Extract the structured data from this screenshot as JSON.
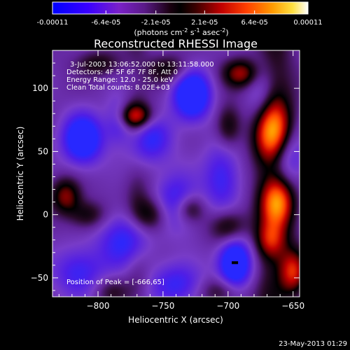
{
  "chart_data": {
    "type": "heatmap",
    "title": "Reconstructed RHESSI Image",
    "xlabel": "Heliocentric X (arcsec)",
    "ylabel": "Heliocentric Y (arcsec)",
    "xlim": [
      -835,
      -645
    ],
    "ylim": [
      -65,
      130
    ],
    "xticks": [
      -800,
      -750,
      -700,
      -650
    ],
    "yticks": [
      -50,
      0,
      50,
      100
    ],
    "colorbar": {
      "range": [
        -0.00011,
        0.00011
      ],
      "tick_labels": [
        "-0.00011",
        "-6.4e-05",
        "-2.1e-05",
        "2.1e-05",
        "6.4e-05",
        "0.00011"
      ],
      "label": "(photons cm",
      "label_sup1": "-2",
      "label_mid": " s",
      "label_sup2": "-1",
      "label_tail": " asec",
      "label_sup3": "-2",
      "label_end": ")"
    },
    "annotations": [
      "3-Jul-2003 13:06:52.000 to 13:11:58.000",
      "Detectors: 4F 5F 6F 7F 8F, Att 0",
      "Energy Range: 12.0 - 25.0 keV",
      "Clean     Total counts: 8.02E+03"
    ],
    "peak_label": "Position of Peak = [-666,65]",
    "timestamp": "23-May-2013 01:29",
    "sources": [
      {
        "x": -728,
        "y": 95,
        "sx": 10,
        "sy": 14,
        "a": -1.0
      },
      {
        "x": -812,
        "y": 60,
        "sx": 11,
        "sy": 14,
        "a": -0.9
      },
      {
        "x": -695,
        "y": -38,
        "sx": 9,
        "sy": 15,
        "a": -1.0
      },
      {
        "x": -760,
        "y": 60,
        "sx": 12,
        "sy": 14,
        "a": -0.55
      },
      {
        "x": -780,
        "y": -20,
        "sx": 14,
        "sy": 16,
        "a": -0.55
      },
      {
        "x": -740,
        "y": 10,
        "sx": 12,
        "sy": 16,
        "a": -0.55
      },
      {
        "x": -705,
        "y": 30,
        "sx": 10,
        "sy": 20,
        "a": -0.5
      },
      {
        "x": -815,
        "y": -45,
        "sx": 14,
        "sy": 14,
        "a": -0.5
      },
      {
        "x": -740,
        "y": -55,
        "sx": 15,
        "sy": 12,
        "a": -0.5
      },
      {
        "x": -655,
        "y": 45,
        "sx": 10,
        "sy": 16,
        "a": -0.6
      },
      {
        "x": -675,
        "y": 95,
        "sx": 8,
        "sy": 20,
        "a": -0.4
      },
      {
        "x": -785,
        "y": 75,
        "sx": 7,
        "sy": 12,
        "a": -0.45
      },
      {
        "x": -666,
        "y": 65,
        "sx": 10,
        "sy": 18,
        "a": 1.0
      },
      {
        "x": -662,
        "y": 10,
        "sx": 9,
        "sy": 14,
        "a": 0.85
      },
      {
        "x": -690,
        "y": 112,
        "sx": 10,
        "sy": 8,
        "a": 0.65
      },
      {
        "x": -700,
        "y": 70,
        "sx": 7,
        "sy": 12,
        "a": 0.45
      },
      {
        "x": -772,
        "y": 78,
        "sx": 10,
        "sy": 7,
        "a": 0.75
      },
      {
        "x": -825,
        "y": 15,
        "sx": 8,
        "sy": 10,
        "a": 0.6
      },
      {
        "x": -808,
        "y": 0,
        "sx": 10,
        "sy": 8,
        "a": 0.4
      },
      {
        "x": -760,
        "y": 0,
        "sx": 10,
        "sy": 10,
        "a": 0.55
      },
      {
        "x": -730,
        "y": 5,
        "sx": 8,
        "sy": 8,
        "a": 0.5
      },
      {
        "x": -700,
        "y": -10,
        "sx": 10,
        "sy": 10,
        "a": 0.55
      },
      {
        "x": -705,
        "y": -60,
        "sx": 12,
        "sy": 8,
        "a": 0.4
      },
      {
        "x": -650,
        "y": -45,
        "sx": 7,
        "sy": 12,
        "a": 0.7
      },
      {
        "x": -745,
        "y": 115,
        "sx": 12,
        "sy": 8,
        "a": 0.4
      },
      {
        "x": -800,
        "y": 120,
        "sx": 12,
        "sy": 7,
        "a": 0.35
      },
      {
        "x": -790,
        "y": -60,
        "sx": 10,
        "sy": 8,
        "a": 0.3
      },
      {
        "x": -668,
        "y": -20,
        "sx": 8,
        "sy": 10,
        "a": 0.5
      }
    ]
  }
}
